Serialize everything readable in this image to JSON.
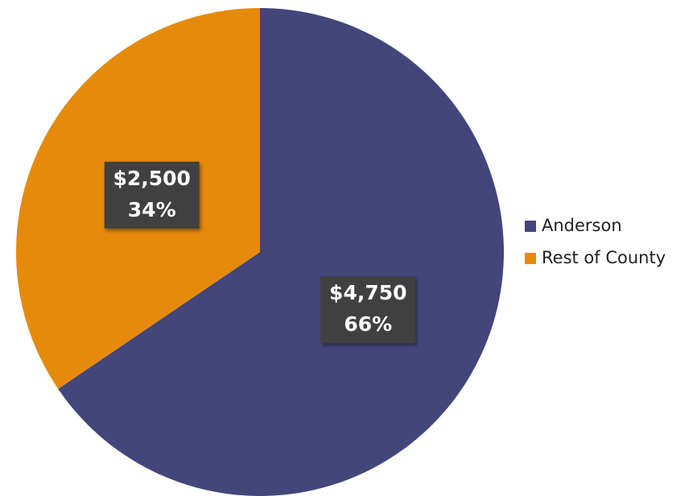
{
  "chart_data": {
    "type": "pie",
    "categories": [
      "Anderson",
      "Rest of County"
    ],
    "values": [
      4750,
      2500
    ],
    "value_labels": [
      "$4,750",
      "$2,500"
    ],
    "percent_labels": [
      "66%",
      "34%"
    ],
    "colors": [
      "#43467a",
      "#e68a0c"
    ],
    "legend": "right"
  }
}
